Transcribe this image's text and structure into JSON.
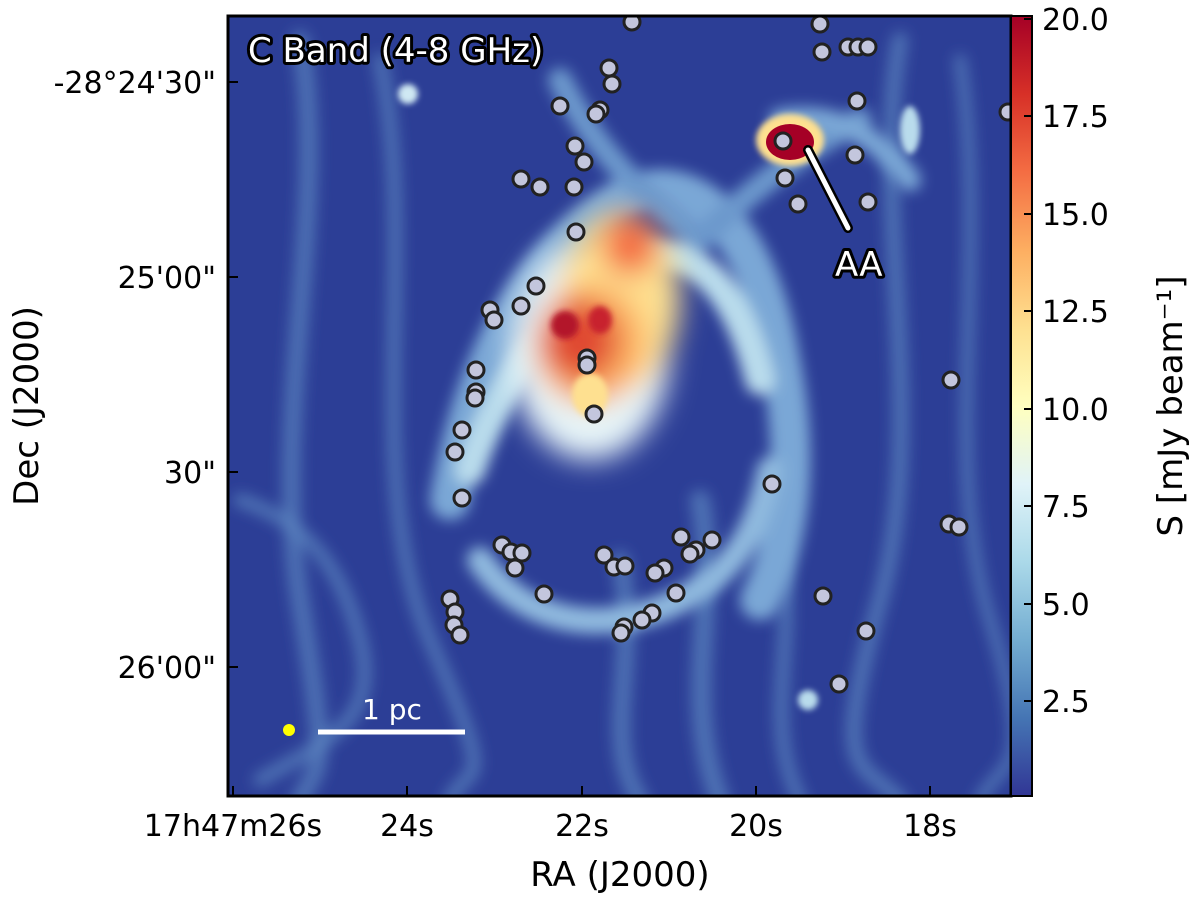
{
  "panel_label": "C Band (4-8 GHz)",
  "x_axis": {
    "title": "RA (J2000)",
    "tick_labels": [
      "17h47m26s",
      "24s",
      "22s",
      "20s",
      "18s"
    ]
  },
  "y_axis": {
    "title": "Dec (J2000)",
    "tick_labels": [
      "-28°24'30\"",
      "25'00\"",
      "30\"",
      "26'00\""
    ]
  },
  "colorbar": {
    "title": "S [mJy beam⁻¹]",
    "tick_labels": [
      "20.0",
      "17.5",
      "15.0",
      "12.5",
      "10.0",
      "7.5",
      "5.0",
      "2.5"
    ],
    "range": [
      0,
      20
    ],
    "colors": [
      "#313695",
      "#4575b4",
      "#74add1",
      "#abd9e9",
      "#e0f3f8",
      "#ffffbf",
      "#fee090",
      "#fdae61",
      "#f46d43",
      "#d73027",
      "#a50026"
    ]
  },
  "annotation": {
    "label": "AA"
  },
  "scale_bar": {
    "label": "1 pc"
  },
  "beam_color": "#ffff00",
  "background_color": "#2c3e96"
}
